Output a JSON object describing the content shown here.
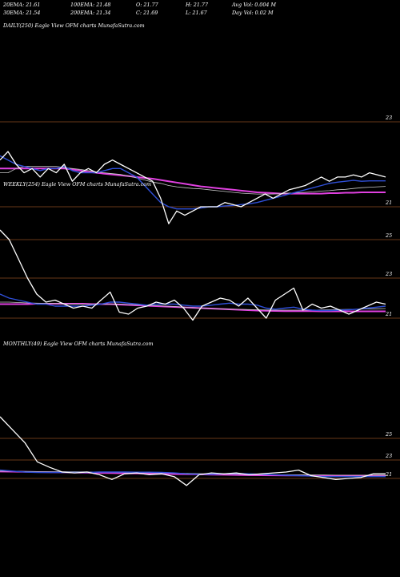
{
  "header": {
    "ema20": "20EMA: 21.61",
    "ema100": "100EMA: 21.48",
    "open": "O: 21.77",
    "high": "H: 21.77",
    "avgvol": "Avg Vol: 0.004  M",
    "ema30": "30EMA: 21.54",
    "ema200": "200EMA: 21.34",
    "close": "C: 21.69",
    "low": "L: 21.67",
    "dayvol": "Day Vol: 0.02  M"
  },
  "colors": {
    "background": "#000000",
    "price": "#ffffff",
    "ema20": "#2f4fd8",
    "ema100": "#c8c8c8",
    "ema200": "#e040e0",
    "ema30": "#d0d0d0",
    "gridline": "#8a4a20"
  },
  "chart_data": [
    {
      "type": "line",
      "title": "DAILY(250) Eagle   View  OFM charts MunafaSutra.com",
      "y_ticks": [
        "23",
        "21"
      ],
      "series": [
        {
          "values": [
            22.1,
            22.3,
            22.0,
            21.8,
            21.9,
            21.7,
            21.9,
            21.8,
            22.0,
            21.6,
            21.8,
            21.9,
            21.8,
            22.0,
            22.1,
            22.0,
            21.9,
            21.8,
            21.7,
            21.6,
            21.2,
            20.6,
            20.9,
            20.8,
            20.9,
            21.0,
            21.0,
            21.0,
            21.1,
            21.05,
            21.0,
            21.1,
            21.2,
            21.3,
            21.2,
            21.3,
            21.4,
            21.45,
            21.5,
            21.6,
            21.7,
            21.6,
            21.7,
            21.7,
            21.75,
            21.7,
            21.8,
            21.75,
            21.7
          ]
        },
        {
          "values": [
            22.2,
            22.1,
            22.0,
            21.95,
            21.9,
            21.85,
            21.9,
            21.9,
            21.95,
            21.85,
            21.8,
            21.8,
            21.8,
            21.85,
            21.9,
            21.9,
            21.8,
            21.7,
            21.5,
            21.3,
            21.1,
            21.0,
            20.95,
            20.95,
            20.95,
            20.97,
            21.0,
            21.0,
            21.02,
            21.03,
            21.05,
            21.07,
            21.1,
            21.15,
            21.2,
            21.25,
            21.3,
            21.35,
            21.4,
            21.45,
            21.5,
            21.55,
            21.58,
            21.6,
            21.62,
            21.6,
            21.61,
            21.61,
            21.61
          ]
        },
        {
          "values": [
            21.8,
            21.8,
            21.9,
            21.95,
            21.95,
            21.95,
            21.95,
            21.95,
            21.92,
            21.9,
            21.88,
            21.85,
            21.82,
            21.8,
            21.78,
            21.76,
            21.72,
            21.68,
            21.63,
            21.58,
            21.55,
            21.5,
            21.47,
            21.45,
            21.43,
            21.42,
            21.4,
            21.38,
            21.36,
            21.34,
            21.32,
            21.31,
            21.3,
            21.3,
            21.3,
            21.31,
            21.32,
            21.33,
            21.34,
            21.35,
            21.37,
            21.38,
            21.4,
            21.41,
            21.43,
            21.45,
            21.46,
            21.47,
            21.48
          ]
        },
        {
          "values": [
            21.9,
            21.9,
            21.9,
            21.9,
            21.9,
            21.9,
            21.9,
            21.9,
            21.9,
            21.88,
            21.85,
            21.82,
            21.8,
            21.78,
            21.76,
            21.74,
            21.72,
            21.7,
            21.68,
            21.66,
            21.63,
            21.6,
            21.57,
            21.54,
            21.51,
            21.48,
            21.46,
            21.44,
            21.42,
            21.4,
            21.38,
            21.36,
            21.34,
            21.33,
            21.32,
            21.31,
            21.31,
            21.31,
            21.31,
            21.31,
            21.31,
            21.32,
            21.32,
            21.33,
            21.33,
            21.34,
            21.34,
            21.34,
            21.34
          ]
        }
      ]
    },
    {
      "type": "line",
      "title": "WEEKLY(254) Eagle   View  OFM charts MunafaSutra.com",
      "y_ticks": [
        "25",
        "23",
        "21"
      ],
      "series": [
        {
          "values": [
            25.5,
            25.0,
            24.0,
            23.0,
            22.2,
            21.8,
            21.9,
            21.7,
            21.5,
            21.6,
            21.5,
            21.9,
            22.3,
            21.3,
            21.2,
            21.5,
            21.6,
            21.8,
            21.7,
            21.9,
            21.5,
            20.9,
            21.6,
            21.8,
            22.0,
            21.9,
            21.6,
            22.0,
            21.5,
            21.0,
            21.9,
            22.2,
            22.5,
            21.4,
            21.7,
            21.5,
            21.6,
            21.4,
            21.2,
            21.4,
            21.6,
            21.8,
            21.7
          ]
        },
        {
          "values": [
            22.2,
            22.0,
            21.9,
            21.8,
            21.7,
            21.7,
            21.6,
            21.6,
            21.6,
            21.6,
            21.65,
            21.7,
            21.8,
            21.8,
            21.75,
            21.7,
            21.65,
            21.7,
            21.7,
            21.7,
            21.65,
            21.6,
            21.6,
            21.65,
            21.7,
            21.75,
            21.7,
            21.7,
            21.65,
            21.5,
            21.45,
            21.5,
            21.55,
            21.45,
            21.4,
            21.38,
            21.38,
            21.4,
            21.42,
            21.45,
            21.5,
            21.55,
            21.6
          ]
        },
        {
          "values": [
            21.8,
            21.8,
            21.78,
            21.76,
            21.75,
            21.74,
            21.73,
            21.72,
            21.71,
            21.7,
            21.7,
            21.7,
            21.7,
            21.7,
            21.68,
            21.66,
            21.64,
            21.62,
            21.6,
            21.58,
            21.55,
            21.52,
            21.5,
            21.48,
            21.46,
            21.45,
            21.44,
            21.43,
            21.42,
            21.41,
            21.4,
            21.4,
            21.4,
            21.4,
            21.4,
            21.41,
            21.42,
            21.43,
            21.44,
            21.45,
            21.46,
            21.47,
            21.48
          ]
        },
        {
          "values": [
            21.7,
            21.7,
            21.7,
            21.7,
            21.72,
            21.72,
            21.72,
            21.72,
            21.72,
            21.72,
            21.7,
            21.7,
            21.7,
            21.68,
            21.66,
            21.64,
            21.62,
            21.6,
            21.58,
            21.56,
            21.54,
            21.52,
            21.5,
            21.48,
            21.46,
            21.44,
            21.42,
            21.4,
            21.38,
            21.37,
            21.36,
            21.35,
            21.35,
            21.35,
            21.35,
            21.34,
            21.34,
            21.34,
            21.34,
            21.34,
            21.34,
            21.34,
            21.34
          ]
        }
      ]
    },
    {
      "type": "line",
      "title": "MONTHLY(49) Eagle   View  OFM charts MunafaSutra.com",
      "y_ticks": [
        "25",
        "23",
        "21"
      ],
      "series": [
        {
          "values": [
            27.0,
            25.8,
            24.6,
            22.8,
            22.2,
            21.7,
            21.6,
            21.7,
            21.4,
            20.9,
            21.5,
            21.6,
            21.4,
            21.5,
            21.2,
            20.3,
            21.4,
            21.6,
            21.5,
            21.6,
            21.4,
            21.5,
            21.6,
            21.7,
            21.9,
            21.3,
            21.1,
            20.9,
            21.0,
            21.1,
            21.5,
            21.5
          ]
        },
        {
          "values": [
            21.9,
            21.8,
            21.7,
            21.65,
            21.65,
            21.65,
            21.65,
            21.65,
            21.7,
            21.7,
            21.7,
            21.68,
            21.68,
            21.65,
            21.6,
            21.5,
            21.45,
            21.45,
            21.5,
            21.55,
            21.5,
            21.45,
            21.4,
            21.35,
            21.3,
            21.25,
            21.2,
            21.2,
            21.2,
            21.2,
            21.2,
            21.2
          ]
        },
        {
          "values": [
            21.8,
            21.78,
            21.76,
            21.75,
            21.74,
            21.73,
            21.72,
            21.71,
            21.7,
            21.68,
            21.66,
            21.64,
            21.62,
            21.6,
            21.58,
            21.55,
            21.52,
            21.5,
            21.48,
            21.46,
            21.44,
            21.42,
            21.41,
            21.4,
            21.39,
            21.38,
            21.37,
            21.36,
            21.35,
            21.35,
            21.35,
            21.35
          ]
        },
        {
          "values": [
            21.75,
            21.74,
            21.72,
            21.7,
            21.68,
            21.66,
            21.64,
            21.62,
            21.6,
            21.58,
            21.56,
            21.54,
            21.52,
            21.5,
            21.48,
            21.46,
            21.44,
            21.42,
            21.4,
            21.38,
            21.36,
            21.35,
            21.34,
            21.33,
            21.32,
            21.31,
            21.3,
            21.3,
            21.3,
            21.3,
            21.3,
            21.3
          ]
        }
      ]
    }
  ]
}
